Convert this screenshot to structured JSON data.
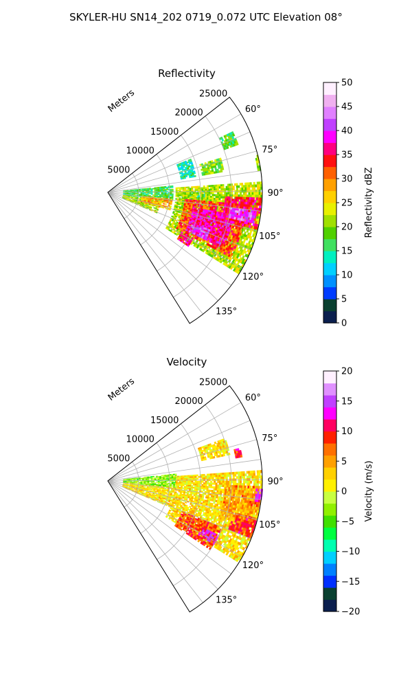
{
  "figure": {
    "title": "SKYLER-HU  SN14_202  0719_0.072 UTC Elevation 08°"
  },
  "chart_data": [
    {
      "type": "heatmap",
      "subtype": "polar-sector (PPI radar sweep)",
      "title": "Reflectivity",
      "radial_label": "Meters",
      "radial_ticks": [
        5000,
        10000,
        15000,
        20000,
        25000
      ],
      "radial_tick_labels": [
        "5000",
        "10000",
        "15000",
        "20000",
        "25000"
      ],
      "rlim": [
        0,
        25000
      ],
      "angle_ticks_deg": [
        60,
        75,
        90,
        105,
        120,
        135
      ],
      "angle_tick_labels": [
        "60°",
        "75°",
        "90°",
        "105°",
        "120°",
        "135°"
      ],
      "theta_range_deg": [
        52,
        148
      ],
      "grid": true,
      "colorbar": {
        "label": "Reflectivity dBZ",
        "range": [
          0,
          50
        ],
        "ticks": [
          0,
          5,
          10,
          15,
          20,
          25,
          30,
          35,
          40,
          45,
          50
        ],
        "tick_labels": [
          "0",
          "5",
          "10",
          "15",
          "20",
          "25",
          "30",
          "35",
          "40",
          "45",
          "50"
        ],
        "colormap": [
          "#0b1f4e",
          "#0a4030",
          "#003cff",
          "#0090ff",
          "#00d0ff",
          "#00f0c0",
          "#40e060",
          "#50d000",
          "#a0e000",
          "#e8f000",
          "#ffd000",
          "#ffa000",
          "#ff6000",
          "#ff1010",
          "#ff0080",
          "#ff00ff",
          "#c040ff",
          "#e080ff",
          "#f0b0f0",
          "#fff0ff"
        ]
      },
      "echoes": [
        {
          "theta_deg": [
            84,
            100
          ],
          "r_m": [
            2500,
            10500
          ],
          "value": 17
        },
        {
          "theta_deg": [
            100,
            113
          ],
          "r_m": [
            2500,
            8500
          ],
          "value": 22
        },
        {
          "theta_deg": [
            96,
            106
          ],
          "r_m": [
            5500,
            10500
          ],
          "value": 28
        },
        {
          "theta_deg": [
            89,
            99
          ],
          "r_m": [
            12000,
            16000
          ],
          "value": 15
        },
        {
          "theta_deg": [
            68,
            80
          ],
          "r_m": [
            12000,
            14500
          ],
          "value": 14
        },
        {
          "theta_deg": [
            73,
            80
          ],
          "r_m": [
            15500,
            19000
          ],
          "value": 20
        },
        {
          "theta_deg": [
            64,
            70
          ],
          "r_m": [
            20000,
            22500
          ],
          "value": 18
        },
        {
          "theta_deg": [
            76,
            82
          ],
          "r_m": [
            24500,
            25000
          ],
          "value": 20
        },
        {
          "theta_deg": [
            86,
            122
          ],
          "r_m": [
            11000,
            24800
          ],
          "value": 22
        },
        {
          "theta_deg": [
            95,
            118
          ],
          "r_m": [
            12500,
            22500
          ],
          "value": 32
        },
        {
          "theta_deg": [
            100,
            116
          ],
          "r_m": [
            14000,
            20500
          ],
          "value": 37
        },
        {
          "theta_deg": [
            92,
            104
          ],
          "r_m": [
            19000,
            24800
          ],
          "value": 35
        },
        {
          "theta_deg": [
            97,
            102
          ],
          "r_m": [
            20000,
            24000
          ],
          "value": 42
        },
        {
          "theta_deg": [
            110,
            116
          ],
          "r_m": [
            14000,
            17500
          ],
          "value": 40
        },
        {
          "theta_deg": [
            118,
            124
          ],
          "r_m": [
            13500,
            15500
          ],
          "value": 36
        }
      ]
    },
    {
      "type": "heatmap",
      "subtype": "polar-sector (PPI radar sweep)",
      "title": "Velocity",
      "radial_label": "Meters",
      "radial_ticks": [
        5000,
        10000,
        15000,
        20000,
        25000
      ],
      "radial_tick_labels": [
        "5000",
        "10000",
        "15000",
        "20000",
        "25000"
      ],
      "rlim": [
        0,
        25000
      ],
      "angle_ticks_deg": [
        60,
        75,
        90,
        105,
        120,
        135
      ],
      "angle_tick_labels": [
        "60°",
        "75°",
        "90°",
        "105°",
        "120°",
        "135°"
      ],
      "theta_range_deg": [
        52,
        148
      ],
      "grid": true,
      "colorbar": {
        "label": "Velocity (m/s)",
        "range": [
          -20,
          20
        ],
        "ticks": [
          -20,
          -15,
          -10,
          -5,
          0,
          5,
          10,
          15,
          20
        ],
        "tick_labels": [
          "−20",
          "−15",
          "−10",
          "−5",
          "0",
          "5",
          "10",
          "15",
          "20"
        ],
        "colormap": [
          "#0b1f4e",
          "#0a4030",
          "#0030ff",
          "#0080ff",
          "#00d0ff",
          "#00ffb0",
          "#00ff40",
          "#40e000",
          "#90f000",
          "#c8ff40",
          "#fff000",
          "#ffd000",
          "#ffa000",
          "#ff7000",
          "#ff2000",
          "#ff0060",
          "#ff00ff",
          "#c040ff",
          "#e090ff",
          "#fff0ff"
        ]
      },
      "echoes": [
        {
          "theta_deg": [
            84,
            96
          ],
          "r_m": [
            2500,
            11000
          ],
          "value": -3
        },
        {
          "theta_deg": [
            96,
            113
          ],
          "r_m": [
            2500,
            11000
          ],
          "value": 2
        },
        {
          "theta_deg": [
            86,
            122
          ],
          "r_m": [
            11000,
            24800
          ],
          "value": 2
        },
        {
          "theta_deg": [
            92,
            108
          ],
          "r_m": [
            19000,
            24800
          ],
          "value": 5
        },
        {
          "theta_deg": [
            104,
            112
          ],
          "r_m": [
            21000,
            24800
          ],
          "value": 9
        },
        {
          "theta_deg": [
            112,
            124
          ],
          "r_m": [
            13000,
            20000
          ],
          "value": 8
        },
        {
          "theta_deg": [
            116,
            121
          ],
          "r_m": [
            17000,
            20000
          ],
          "value": 13
        },
        {
          "theta_deg": [
            93,
            98
          ],
          "r_m": [
            24000,
            25000
          ],
          "value": 14
        },
        {
          "theta_deg": [
            70,
            78
          ],
          "r_m": [
            15500,
            20000
          ],
          "value": 2
        },
        {
          "theta_deg": [
            76,
            80
          ],
          "r_m": [
            21000,
            22000
          ],
          "value": 9
        }
      ]
    }
  ]
}
